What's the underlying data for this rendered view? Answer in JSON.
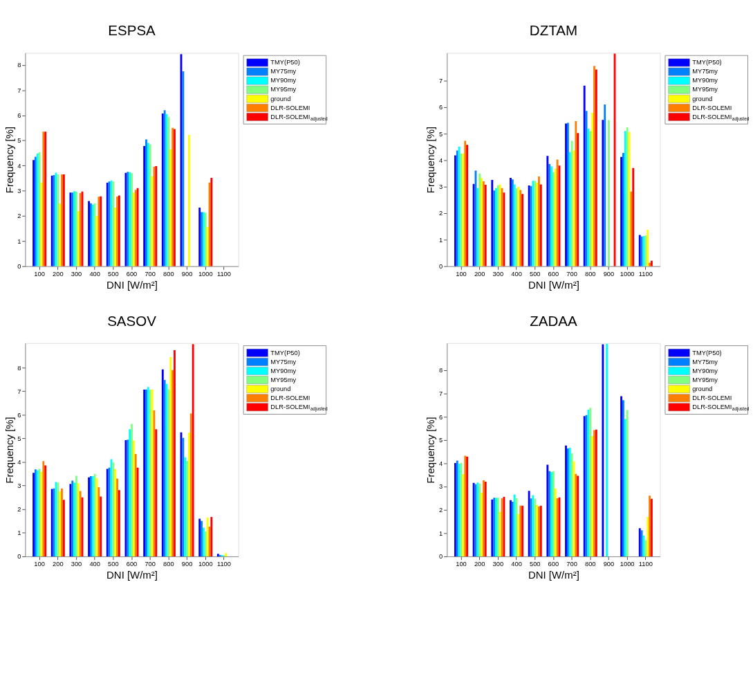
{
  "chart_data": [
    {
      "type": "bar",
      "title": "ESPSA",
      "xlabel": "DNI [W/m²]",
      "ylabel": "Frequency [%]",
      "legend": "top right",
      "categories": [
        "100",
        "200",
        "300",
        "400",
        "500",
        "600",
        "700",
        "800",
        "900",
        "1000",
        "1100"
      ],
      "ylim": [
        0,
        8.48
      ],
      "yticks": [
        0,
        1,
        2,
        3,
        4,
        5,
        6,
        7,
        8
      ],
      "series": [
        {
          "name": "TMY(P50)",
          "color": "#0000ff",
          "values": [
            4.22,
            3.6,
            2.93,
            2.59,
            3.32,
            3.71,
            4.78,
            6.07,
            8.43,
            2.33,
            0
          ]
        },
        {
          "name": "MY75my",
          "color": "#0080ff",
          "values": [
            4.35,
            3.62,
            2.93,
            2.5,
            3.37,
            3.75,
            5.04,
            6.2,
            7.75,
            2.15,
            0
          ]
        },
        {
          "name": "MY90my",
          "color": "#00ffff",
          "values": [
            4.48,
            3.72,
            2.98,
            2.45,
            3.41,
            3.74,
            4.9,
            6.05,
            null,
            2.15,
            0
          ]
        },
        {
          "name": "MY95my",
          "color": "#80ff80",
          "values": [
            4.53,
            3.65,
            2.96,
            2.5,
            3.37,
            3.7,
            4.85,
            5.93,
            null,
            2.12,
            0
          ]
        },
        {
          "name": "ground",
          "color": "#ffff00",
          "values": [
            3.33,
            2.48,
            2.19,
            2.0,
            2.33,
            2.92,
            3.57,
            4.65,
            5.22,
            1.56,
            null
          ]
        },
        {
          "name": "DLR-SOLEMI",
          "color": "#ff8000",
          "values": [
            5.35,
            3.65,
            2.91,
            2.76,
            2.77,
            3.04,
            3.95,
            5.5,
            null,
            3.33,
            null
          ]
        },
        {
          "name": "DLR-SOLEMI$_{adjusted}$",
          "color": "#ff0000",
          "values": [
            5.35,
            3.65,
            2.97,
            2.78,
            2.81,
            3.11,
            3.98,
            5.45,
            null,
            3.51,
            null
          ]
        }
      ]
    },
    {
      "type": "bar",
      "title": "DZTAM",
      "xlabel": "DNI [W/m²]",
      "ylabel": "Frequency [%]",
      "legend": "top right",
      "categories": [
        "100",
        "200",
        "300",
        "400",
        "500",
        "600",
        "700",
        "800",
        "900",
        "1000",
        "1100"
      ],
      "ylim": [
        0,
        8.06
      ],
      "yticks": [
        0,
        1,
        2,
        3,
        4,
        5,
        6,
        7
      ],
      "series": [
        {
          "name": "TMY(P50)",
          "color": "#0000ff",
          "values": [
            4.19,
            3.11,
            3.26,
            3.34,
            3.05,
            4.17,
            5.39,
            6.82,
            5.53,
            4.13,
            1.18
          ]
        },
        {
          "name": "MY75my",
          "color": "#0080ff",
          "values": [
            4.37,
            3.61,
            2.86,
            3.28,
            3.03,
            3.86,
            5.42,
            5.87,
            6.11,
            4.28,
            1.12
          ]
        },
        {
          "name": "MY90my",
          "color": "#00ffff",
          "values": [
            4.52,
            2.95,
            2.95,
            3.09,
            3.23,
            3.77,
            4.31,
            5.2,
            null,
            5.11,
            1.14
          ]
        },
        {
          "name": "MY95my",
          "color": "#80ff80",
          "values": [
            4.26,
            3.5,
            3.06,
            2.93,
            3.23,
            3.55,
            4.74,
            5.11,
            5.52,
            5.25,
            1.16
          ]
        },
        {
          "name": "ground",
          "color": "#ffff00",
          "values": [
            4.26,
            3.33,
            3.09,
            3.0,
            3.16,
            3.69,
            4.38,
            5.8,
            null,
            5.07,
            1.38
          ]
        },
        {
          "name": "DLR-SOLEMI",
          "color": "#ff8000",
          "values": [
            4.74,
            3.21,
            2.95,
            2.88,
            3.39,
            4.03,
            5.48,
            7.57,
            null,
            2.82,
            0.13
          ]
        },
        {
          "name": "DLR-SOLEMI$_{adjusted}$",
          "color": "#ff0000",
          "values": [
            4.59,
            3.08,
            2.78,
            2.73,
            3.09,
            3.8,
            5.03,
            7.43,
            8.03,
            3.71,
            0.21
          ]
        }
      ]
    },
    {
      "type": "bar",
      "title": "SASOV",
      "xlabel": "DNI [W/m²]",
      "ylabel": "Frequency [%]",
      "legend": "top right",
      "categories": [
        "100",
        "200",
        "300",
        "400",
        "500",
        "600",
        "700",
        "800",
        "900",
        "1000",
        "1100"
      ],
      "ylim": [
        0,
        9.04
      ],
      "yticks": [
        0,
        1,
        2,
        3,
        4,
        5,
        6,
        7,
        8
      ],
      "series": [
        {
          "name": "TMY(P50)",
          "color": "#0000ff",
          "values": [
            3.54,
            2.86,
            3.07,
            3.35,
            3.71,
            4.93,
            7.07,
            7.93,
            5.26,
            1.6,
            0.11
          ]
        },
        {
          "name": "MY75my",
          "color": "#0080ff",
          "values": [
            3.69,
            2.88,
            3.21,
            3.4,
            3.76,
            4.95,
            7.08,
            7.48,
            5.02,
            1.5,
            0.06
          ]
        },
        {
          "name": "MY90my",
          "color": "#00ffff",
          "values": [
            3.65,
            3.15,
            3.13,
            3.4,
            4.12,
            5.39,
            7.18,
            7.31,
            4.2,
            1.22,
            0.06
          ]
        },
        {
          "name": "MY95my",
          "color": "#80ff80",
          "values": [
            3.71,
            3.13,
            3.42,
            3.5,
            3.98,
            5.62,
            7.06,
            7.08,
            4.05,
            1.06,
            0.06
          ]
        },
        {
          "name": "ground",
          "color": "#ffff00",
          "values": [
            3.59,
            2.76,
            3.1,
            3.32,
            3.7,
            4.91,
            7.08,
            8.45,
            5.24,
            1.65,
            0.14
          ]
        },
        {
          "name": "DLR-SOLEMI",
          "color": "#ff8000",
          "values": [
            4.04,
            2.88,
            2.77,
            2.93,
            3.3,
            4.34,
            6.19,
            7.9,
            6.06,
            1.26,
            0
          ]
        },
        {
          "name": "DLR-SOLEMI$_{adjusted}$",
          "color": "#ff0000",
          "values": [
            3.86,
            2.4,
            2.5,
            2.54,
            2.81,
            3.76,
            5.39,
            8.74,
            9.0,
            1.67,
            0
          ]
        }
      ]
    },
    {
      "type": "bar",
      "title": "ZADAA",
      "xlabel": "DNI [W/m²]",
      "ylabel": "Frequency [%]",
      "legend": "top right",
      "categories": [
        "100",
        "200",
        "300",
        "400",
        "500",
        "600",
        "700",
        "800",
        "900",
        "1000",
        "1100"
      ],
      "ylim": [
        0,
        9.17
      ],
      "yticks": [
        0,
        1,
        2,
        3,
        4,
        5,
        6,
        7,
        8
      ],
      "series": [
        {
          "name": "TMY(P50)",
          "color": "#0000ff",
          "values": [
            4.02,
            3.16,
            2.45,
            2.42,
            2.82,
            3.94,
            4.77,
            6.03,
            9.12,
            6.89,
            1.21
          ]
        },
        {
          "name": "MY75my",
          "color": "#0080ff",
          "values": [
            4.12,
            3.1,
            2.52,
            2.35,
            2.49,
            3.67,
            4.64,
            6.08,
            null,
            6.72,
            1.12
          ]
        },
        {
          "name": "MY90my",
          "color": "#00ffff",
          "values": [
            3.99,
            3.18,
            2.52,
            2.66,
            2.63,
            3.63,
            4.67,
            6.31,
            9.14,
            5.91,
            0.9
          ]
        },
        {
          "name": "MY95my",
          "color": "#80ff80",
          "values": [
            4.02,
            3.13,
            2.52,
            2.5,
            2.48,
            3.67,
            4.43,
            6.39,
            null,
            6.29,
            0.7
          ]
        },
        {
          "name": "ground",
          "color": "#ffff00",
          "values": [
            3.54,
            2.74,
            1.92,
            1.82,
            2.22,
            2.92,
            4.09,
            5.17,
            null,
            null,
            1.7
          ]
        },
        {
          "name": "DLR-SOLEMI",
          "color": "#ff8000",
          "values": [
            4.33,
            3.27,
            2.5,
            2.19,
            2.15,
            2.5,
            3.55,
            5.43,
            null,
            null,
            2.61
          ]
        },
        {
          "name": "DLR-SOLEMI$_{adjusted}$",
          "color": "#ff0000",
          "values": [
            4.29,
            3.21,
            2.56,
            2.18,
            2.18,
            2.54,
            3.47,
            5.45,
            null,
            null,
            2.48
          ]
        }
      ]
    }
  ]
}
